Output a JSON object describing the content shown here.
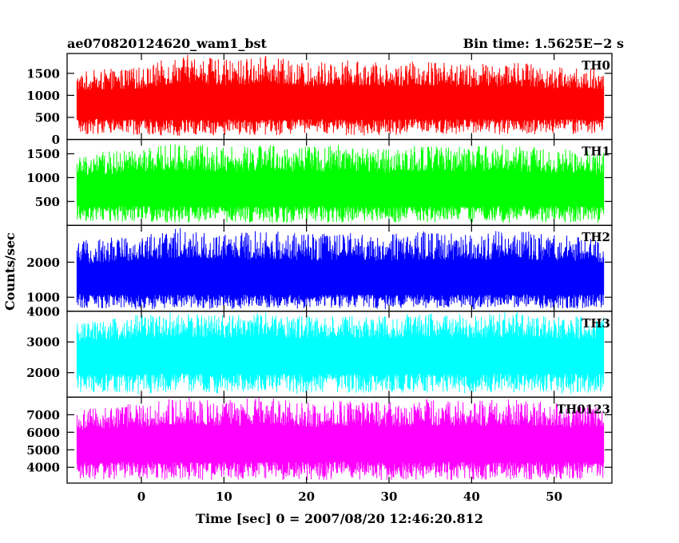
{
  "header": {
    "title": "ae070820124620_wam1_bst",
    "bin_time": "Bin time: 1.5625E−2 s"
  },
  "axes": {
    "ylabel": "Counts/sec",
    "xlabel": "Time [sec] 0 = 2007/08/20 12:46:20.812"
  },
  "chart_data": {
    "type": "line",
    "title": "ae070820124620_wam1_bst",
    "subtitle": "Bin time: 1.5625E−2 s",
    "xlabel": "Time [sec] 0 = 2007/08/20 12:46:20.812",
    "ylabel": "Counts/sec",
    "xlim": [
      -9,
      57
    ],
    "xticks": [
      0,
      10,
      20,
      30,
      40,
      50
    ],
    "x_data_range": [
      -7.8,
      56.0
    ],
    "bin_time_sec": 0.015625,
    "grid": false,
    "panels": [
      {
        "name": "TH0",
        "color": "#ff0000",
        "ylim": [
          0,
          1950
        ],
        "yticks": [
          0,
          500,
          1000,
          1500
        ],
        "mean": 750,
        "envelope": [
          [
            -7.8,
            120,
            1550
          ],
          [
            0,
            100,
            1650
          ],
          [
            5,
            80,
            1950
          ],
          [
            10,
            100,
            1800
          ],
          [
            15,
            90,
            1900
          ],
          [
            20,
            110,
            1750
          ],
          [
            25,
            80,
            1800
          ],
          [
            30,
            100,
            1750
          ],
          [
            35,
            120,
            1800
          ],
          [
            40,
            100,
            1700
          ],
          [
            45,
            110,
            1800
          ],
          [
            50,
            120,
            1650
          ],
          [
            56,
            100,
            1600
          ]
        ]
      },
      {
        "name": "TH1",
        "color": "#00ff00",
        "ylim": [
          0,
          1800
        ],
        "yticks": [
          500,
          1000,
          1500
        ],
        "mean": 680,
        "envelope": [
          [
            -7.8,
            80,
            1500
          ],
          [
            0,
            60,
            1600
          ],
          [
            5,
            50,
            1750
          ],
          [
            10,
            60,
            1650
          ],
          [
            15,
            40,
            1700
          ],
          [
            20,
            60,
            1650
          ],
          [
            25,
            50,
            1700
          ],
          [
            30,
            60,
            1600
          ],
          [
            35,
            50,
            1700
          ],
          [
            40,
            60,
            1650
          ],
          [
            45,
            50,
            1700
          ],
          [
            50,
            60,
            1600
          ],
          [
            56,
            60,
            1550
          ]
        ]
      },
      {
        "name": "TH2",
        "color": "#0000ff",
        "ylim": [
          600,
          3050
        ],
        "yticks": [
          1000,
          2000
        ],
        "mean": 1400,
        "envelope": [
          [
            -7.8,
            700,
            2600
          ],
          [
            0,
            650,
            2850
          ],
          [
            5,
            700,
            3000
          ],
          [
            10,
            650,
            2800
          ],
          [
            15,
            700,
            2950
          ],
          [
            20,
            650,
            2800
          ],
          [
            25,
            700,
            2850
          ],
          [
            30,
            650,
            2800
          ],
          [
            35,
            700,
            2900
          ],
          [
            40,
            650,
            2850
          ],
          [
            45,
            700,
            2950
          ],
          [
            50,
            650,
            2800
          ],
          [
            56,
            700,
            2700
          ]
        ]
      },
      {
        "name": "TH3",
        "color": "#00ffff",
        "ylim": [
          1200,
          4000
        ],
        "yticks": [
          2000,
          3000,
          4000
        ],
        "mean": 2500,
        "envelope": [
          [
            -7.8,
            1350,
            3600
          ],
          [
            0,
            1300,
            3900
          ],
          [
            5,
            1350,
            4000
          ],
          [
            10,
            1300,
            3900
          ],
          [
            15,
            1350,
            4000
          ],
          [
            20,
            1300,
            3850
          ],
          [
            25,
            1350,
            3900
          ],
          [
            30,
            1300,
            3850
          ],
          [
            35,
            1350,
            4000
          ],
          [
            40,
            1300,
            3900
          ],
          [
            45,
            1350,
            4000
          ],
          [
            50,
            1300,
            3850
          ],
          [
            56,
            1350,
            3800
          ]
        ]
      },
      {
        "name": "TH0123",
        "color": "#ff00ff",
        "ylim": [
          3100,
          8000
        ],
        "yticks": [
          4000,
          5000,
          6000,
          7000
        ],
        "mean": 5150,
        "envelope": [
          [
            -7.8,
            3300,
            7300
          ],
          [
            0,
            3250,
            7700
          ],
          [
            5,
            3300,
            8000
          ],
          [
            10,
            3250,
            7800
          ],
          [
            15,
            3300,
            8000
          ],
          [
            20,
            3250,
            7700
          ],
          [
            25,
            3300,
            7800
          ],
          [
            30,
            3250,
            7700
          ],
          [
            35,
            3300,
            7900
          ],
          [
            40,
            3250,
            7800
          ],
          [
            45,
            3300,
            7900
          ],
          [
            50,
            3250,
            7700
          ],
          [
            56,
            3300,
            7500
          ]
        ]
      }
    ]
  }
}
